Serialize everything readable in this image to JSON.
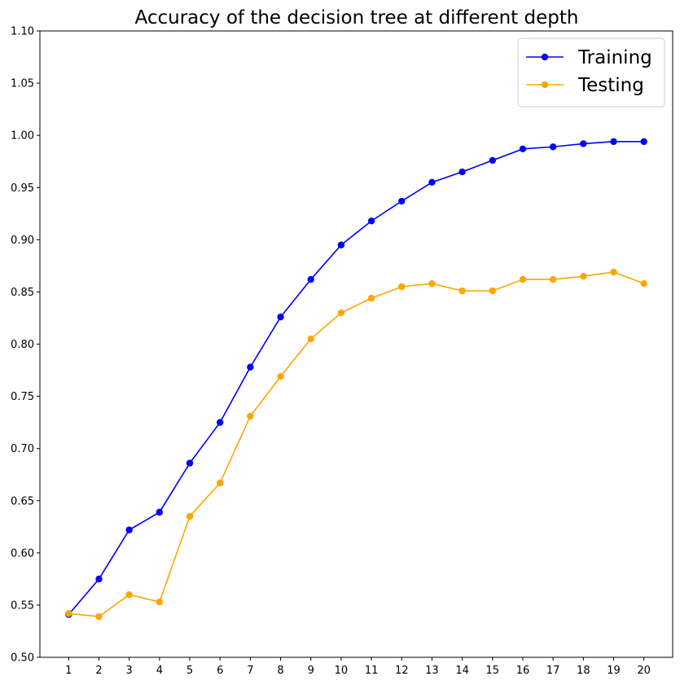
{
  "chart_data": {
    "type": "line",
    "title": "Accuracy of the decision tree at different depth",
    "xlabel": "",
    "ylabel": "",
    "x": [
      1,
      2,
      3,
      4,
      5,
      6,
      7,
      8,
      9,
      10,
      11,
      12,
      13,
      14,
      15,
      16,
      17,
      18,
      19,
      20
    ],
    "xlim": [
      0.05,
      20.95
    ],
    "ylim": [
      0.5,
      1.1
    ],
    "yticks": [
      "0.50",
      "0.55",
      "0.60",
      "0.65",
      "0.70",
      "0.75",
      "0.80",
      "0.85",
      "0.90",
      "0.95",
      "1.00",
      "1.05",
      "1.10"
    ],
    "grid": false,
    "legend_position": "top-right",
    "series": [
      {
        "name": "Training",
        "color": "#0000ff",
        "marker": "circle",
        "values": [
          0.541,
          0.575,
          0.622,
          0.639,
          0.686,
          0.725,
          0.778,
          0.826,
          0.862,
          0.895,
          0.918,
          0.937,
          0.955,
          0.965,
          0.976,
          0.987,
          0.989,
          0.992,
          0.994,
          0.994
        ]
      },
      {
        "name": "Testing",
        "color": "#ffa500",
        "marker": "circle",
        "values": [
          0.542,
          0.539,
          0.56,
          0.553,
          0.635,
          0.667,
          0.731,
          0.769,
          0.805,
          0.83,
          0.844,
          0.855,
          0.858,
          0.851,
          0.851,
          0.862,
          0.862,
          0.865,
          0.869,
          0.858
        ]
      }
    ]
  }
}
